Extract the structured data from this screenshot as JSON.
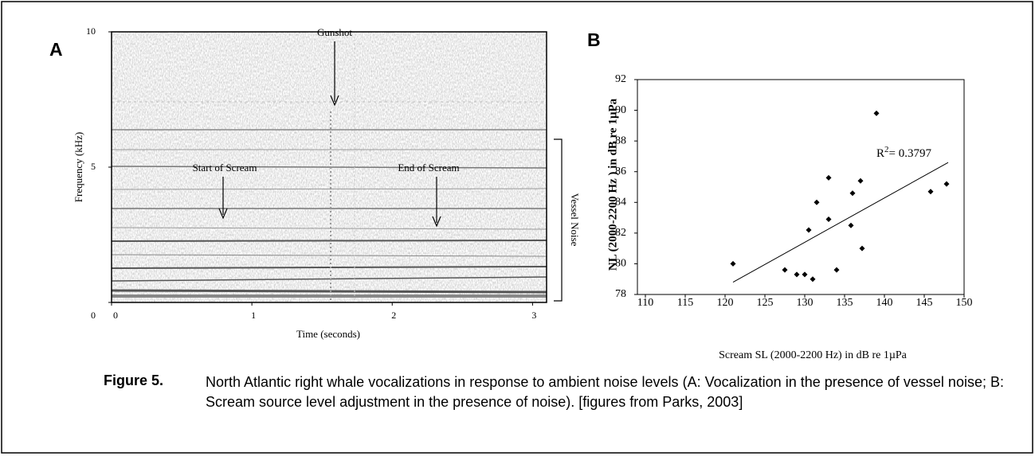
{
  "chart_data": [
    {
      "type": "spectrogram",
      "panel_label": "A",
      "xlabel": "Time (seconds)",
      "ylabel": "Frequency (kHz)",
      "xlim": [
        0,
        3.1
      ],
      "ylim": [
        0,
        10
      ],
      "xticks": [
        0,
        1,
        2,
        3
      ],
      "yticks": [
        0,
        5,
        10
      ],
      "annotations": [
        "Gunshot",
        "Start of Scream",
        "End of Scream",
        "Vessel Noise"
      ]
    },
    {
      "type": "scatter",
      "panel_label": "B",
      "xlabel": "Scream SL (2000-2200 Hz) in dB re 1µPa",
      "ylabel": "NL (2000-2200 Hz ) in dB re 1µPa",
      "xlim": [
        109,
        150
      ],
      "ylim": [
        78,
        92
      ],
      "xticks": [
        110,
        115,
        120,
        125,
        130,
        135,
        140,
        145,
        150
      ],
      "yticks": [
        78,
        80,
        82,
        84,
        86,
        88,
        90,
        92
      ],
      "color": "#000000",
      "x": [
        121,
        127.5,
        129,
        130,
        131,
        130.5,
        131.5,
        133,
        133,
        134,
        135.8,
        136,
        137,
        137.2,
        139,
        145.8,
        147.8
      ],
      "y": [
        80,
        79.6,
        79.3,
        79.3,
        79,
        82.2,
        84,
        82.9,
        85.6,
        79.6,
        82.5,
        84.6,
        85.4,
        81,
        89.8,
        84.7,
        85.2
      ],
      "trendline": {
        "x": [
          121,
          148
        ],
        "y": [
          78.8,
          86.6
        ]
      },
      "r2_annotation": {
        "base": "R",
        "sup": "2",
        "rest": "= 0.3797"
      }
    }
  ],
  "caption": {
    "label": "Figure 5.",
    "text": "North Atlantic right whale vocalizations in response to ambient noise levels (A: Vocalization in the presence of vessel noise; B: Scream source level adjustment in the presence of noise). [figures from Parks, 2003]"
  }
}
